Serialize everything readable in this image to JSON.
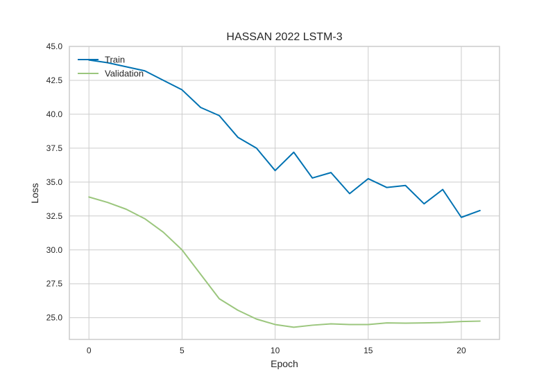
{
  "chart_data": {
    "type": "line",
    "title": "HASSAN 2022 LSTM-3",
    "xlabel": "Epoch",
    "ylabel": "Loss",
    "xlim": [
      -1.05,
      22.05
    ],
    "ylim": [
      23.4,
      45.0
    ],
    "xticks": [
      0,
      5,
      10,
      15,
      20
    ],
    "yticks": [
      25.0,
      27.5,
      30.0,
      32.5,
      35.0,
      37.5,
      40.0,
      42.5,
      45.0
    ],
    "ytick_labels": [
      "25.0",
      "27.5",
      "30.0",
      "32.5",
      "35.0",
      "37.5",
      "40.0",
      "42.5",
      "45.0"
    ],
    "grid": true,
    "legend_position": "upper-left",
    "x": [
      0,
      1,
      2,
      3,
      4,
      5,
      6,
      7,
      8,
      9,
      10,
      11,
      12,
      13,
      14,
      15,
      16,
      17,
      18,
      19,
      20,
      21
    ],
    "series": [
      {
        "name": "Train",
        "color": "#0072b2",
        "values": [
          44.0,
          43.8,
          43.5,
          43.2,
          42.5,
          41.8,
          40.5,
          39.9,
          38.3,
          37.5,
          35.85,
          37.2,
          35.3,
          35.7,
          34.15,
          35.25,
          34.6,
          34.75,
          33.4,
          34.45,
          32.4,
          32.9
        ]
      },
      {
        "name": "Validation",
        "color": "#9bc67d",
        "values": [
          33.9,
          33.5,
          33.0,
          32.3,
          31.3,
          30.0,
          28.2,
          26.4,
          25.55,
          24.9,
          24.5,
          24.3,
          24.45,
          24.55,
          24.5,
          24.5,
          24.62,
          24.6,
          24.62,
          24.65,
          24.72,
          24.75
        ]
      }
    ]
  }
}
